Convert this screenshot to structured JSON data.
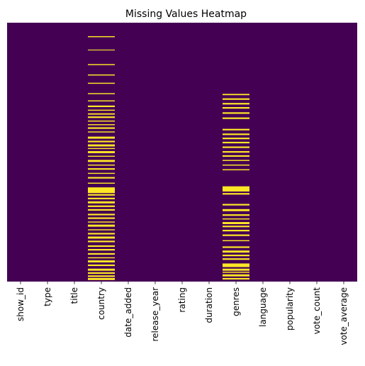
{
  "chart_data": {
    "type": "heatmap",
    "title": "Missing Values Heatmap",
    "xlabel": "",
    "ylabel": "",
    "colormap": "viridis",
    "colors": {
      "present": "#440154",
      "missing": "#fde725"
    },
    "colorbar": false,
    "y_ticks": false,
    "grid": false,
    "columns": [
      "show_id",
      "type",
      "title",
      "country",
      "date_added",
      "release_year",
      "rating",
      "duration",
      "genres",
      "language",
      "popularity",
      "vote_count",
      "vote_average"
    ],
    "row_range": [
      0,
      1
    ],
    "missing_rows": [
      {
        "column": "country",
        "row_spans": [
          [
            0.052,
            0.056
          ],
          [
            0.104,
            0.107
          ],
          [
            0.16,
            0.164
          ],
          [
            0.2,
            0.204
          ],
          [
            0.232,
            0.236
          ],
          [
            0.272,
            0.276
          ],
          [
            0.3,
            0.304
          ],
          [
            0.32,
            0.326
          ],
          [
            0.336,
            0.34
          ],
          [
            0.35,
            0.355
          ],
          [
            0.362,
            0.368
          ],
          [
            0.378,
            0.382
          ],
          [
            0.392,
            0.396
          ],
          [
            0.404,
            0.41
          ],
          [
            0.42,
            0.424
          ],
          [
            0.44,
            0.448
          ],
          [
            0.456,
            0.462
          ],
          [
            0.47,
            0.478
          ],
          [
            0.484,
            0.488
          ],
          [
            0.496,
            0.504
          ],
          [
            0.514,
            0.518
          ],
          [
            0.53,
            0.538
          ],
          [
            0.548,
            0.552
          ],
          [
            0.562,
            0.568
          ],
          [
            0.58,
            0.584
          ],
          [
            0.596,
            0.602
          ],
          [
            0.618,
            0.622
          ],
          [
            0.636,
            0.658
          ],
          [
            0.662,
            0.668
          ],
          [
            0.676,
            0.682
          ],
          [
            0.69,
            0.698
          ],
          [
            0.706,
            0.712
          ],
          [
            0.72,
            0.726
          ],
          [
            0.738,
            0.744
          ],
          [
            0.752,
            0.758
          ],
          [
            0.768,
            0.772
          ],
          [
            0.78,
            0.788
          ],
          [
            0.798,
            0.802
          ],
          [
            0.812,
            0.818
          ],
          [
            0.826,
            0.834
          ],
          [
            0.842,
            0.848
          ],
          [
            0.86,
            0.866
          ],
          [
            0.874,
            0.88
          ],
          [
            0.89,
            0.896
          ],
          [
            0.906,
            0.91
          ],
          [
            0.918,
            0.926
          ],
          [
            0.934,
            0.94
          ],
          [
            0.95,
            0.958
          ],
          [
            0.964,
            0.97
          ],
          [
            0.976,
            0.982
          ],
          [
            0.986,
            0.994
          ]
        ]
      },
      {
        "column": "genres",
        "row_spans": [
          [
            0.275,
            0.28
          ],
          [
            0.292,
            0.298
          ],
          [
            0.31,
            0.316
          ],
          [
            0.326,
            0.332
          ],
          [
            0.346,
            0.352
          ],
          [
            0.366,
            0.372
          ],
          [
            0.41,
            0.416
          ],
          [
            0.428,
            0.434
          ],
          [
            0.444,
            0.45
          ],
          [
            0.46,
            0.466
          ],
          [
            0.478,
            0.484
          ],
          [
            0.496,
            0.502
          ],
          [
            0.512,
            0.518
          ],
          [
            0.53,
            0.534
          ],
          [
            0.548,
            0.552
          ],
          [
            0.566,
            0.57
          ],
          [
            0.632,
            0.652
          ],
          [
            0.658,
            0.664
          ],
          [
            0.7,
            0.706
          ],
          [
            0.72,
            0.728
          ],
          [
            0.74,
            0.746
          ],
          [
            0.756,
            0.76
          ],
          [
            0.77,
            0.778
          ],
          [
            0.784,
            0.79
          ],
          [
            0.8,
            0.806
          ],
          [
            0.818,
            0.824
          ],
          [
            0.84,
            0.844
          ],
          [
            0.864,
            0.87
          ],
          [
            0.88,
            0.888
          ],
          [
            0.896,
            0.902
          ],
          [
            0.91,
            0.916
          ],
          [
            0.93,
            0.944
          ],
          [
            0.95,
            0.958
          ],
          [
            0.962,
            0.966
          ],
          [
            0.972,
            0.98
          ],
          [
            0.986,
            0.992
          ]
        ]
      }
    ]
  }
}
